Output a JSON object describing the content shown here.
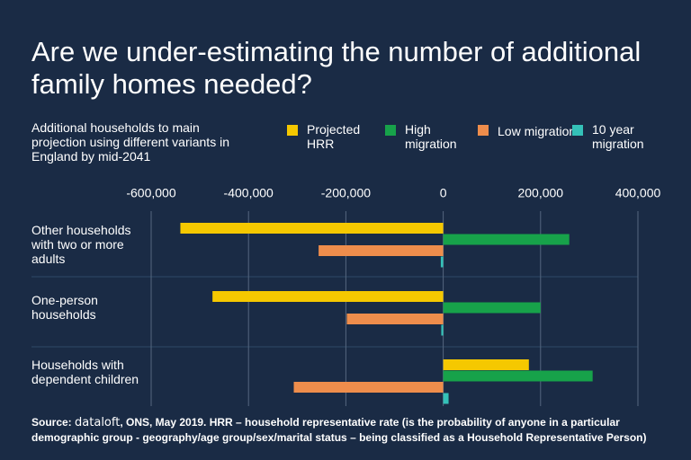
{
  "chart_data": {
    "type": "bar",
    "orientation": "horizontal",
    "title": "Are we under-estimating the number of additional family homes needed?",
    "subtitle": "Additional households to main projection using different variants in England by mid-2041",
    "categories": [
      "Other households with two or more adults",
      "One-person households",
      "Households with dependent children"
    ],
    "series": [
      {
        "name": "Projected HRR",
        "color": "#f5c800",
        "values": [
          -540000,
          -474000,
          176000
        ]
      },
      {
        "name": "High migration",
        "color": "#17a24a",
        "values": [
          259000,
          200000,
          307000
        ]
      },
      {
        "name": "Low migration",
        "color": "#ee8d4c",
        "values": [
          -256000,
          -198000,
          -307000
        ]
      },
      {
        "name": "10 year migration",
        "color": "#34c1b8",
        "values": [
          -5000,
          -4000,
          11000
        ]
      }
    ],
    "xlim": [
      -600000,
      400000
    ],
    "xticks": [
      {
        "value": -600000,
        "label": "-600,000"
      },
      {
        "value": -400000,
        "label": "-400,000"
      },
      {
        "value": -200000,
        "label": "-200,000"
      },
      0,
      {
        "value": 200000,
        "label": "200,000"
      },
      {
        "value": 400000,
        "label": "400,000"
      }
    ],
    "grid": true,
    "source_label": "Source:",
    "source_brand": "dataloft",
    "source_text": ", ONS, May 2019.  HRR – household representative rate (is the probability of anyone in a particular demographic group - geography/age group/sex/marital status – being classified as a Household Representative Person)"
  }
}
